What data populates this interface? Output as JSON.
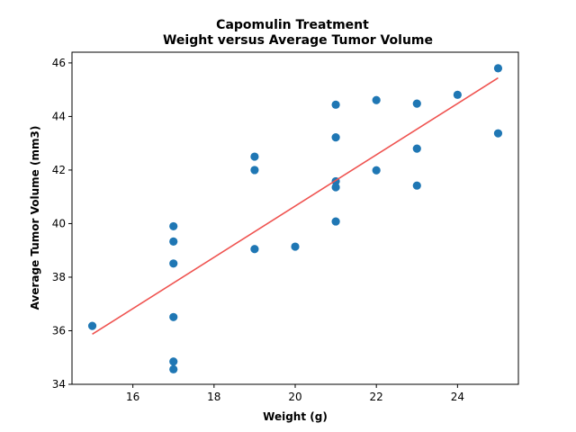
{
  "chart_data": {
    "type": "scatter",
    "title_line1": "Capomulin Treatment",
    "title_line2": "Weight versus Average Tumor Volume",
    "xlabel": "Weight (g)",
    "ylabel": "Average Tumor Volume (mm3)",
    "xlim": [
      14.5,
      25.5
    ],
    "ylim": [
      34,
      46.4
    ],
    "xticks": [
      "16",
      "18",
      "20",
      "22",
      "24"
    ],
    "yticks": [
      "34",
      "36",
      "38",
      "40",
      "42",
      "44",
      "46"
    ],
    "grid": false,
    "colors": {
      "points": "#1f77b4",
      "regression": "#ef5350"
    },
    "points": [
      {
        "x": 15,
        "y": 36.18
      },
      {
        "x": 17,
        "y": 39.9
      },
      {
        "x": 17,
        "y": 39.33
      },
      {
        "x": 17,
        "y": 38.51
      },
      {
        "x": 17,
        "y": 36.51
      },
      {
        "x": 17,
        "y": 34.85
      },
      {
        "x": 17,
        "y": 34.56
      },
      {
        "x": 19,
        "y": 42.5
      },
      {
        "x": 19,
        "y": 42.0
      },
      {
        "x": 19,
        "y": 39.05
      },
      {
        "x": 20,
        "y": 39.14
      },
      {
        "x": 21,
        "y": 44.44
      },
      {
        "x": 21,
        "y": 43.22
      },
      {
        "x": 21,
        "y": 41.58
      },
      {
        "x": 21,
        "y": 41.36
      },
      {
        "x": 21,
        "y": 40.08
      },
      {
        "x": 22,
        "y": 44.61
      },
      {
        "x": 22,
        "y": 41.99
      },
      {
        "x": 23,
        "y": 44.48
      },
      {
        "x": 23,
        "y": 42.8
      },
      {
        "x": 23,
        "y": 41.42
      },
      {
        "x": 24,
        "y": 44.81
      },
      {
        "x": 25,
        "y": 45.8
      },
      {
        "x": 25,
        "y": 43.37
      }
    ],
    "regression_line": {
      "x": [
        15,
        25
      ],
      "y": [
        35.87,
        45.44
      ]
    }
  }
}
